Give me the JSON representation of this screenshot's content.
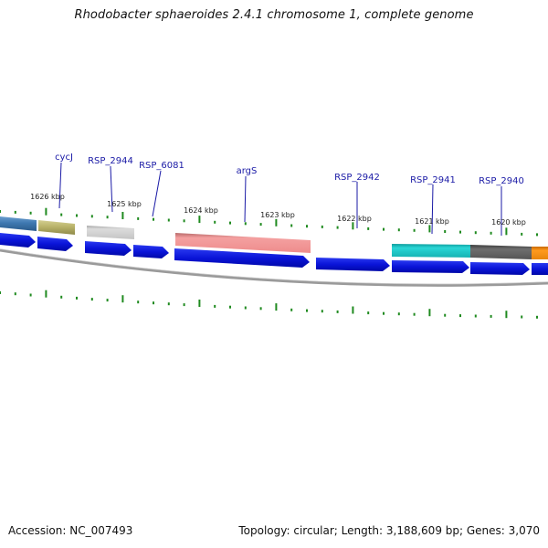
{
  "title": "Rhodobacter sphaeroides 2.4.1 chromosome 1, complete genome",
  "footer": {
    "accession": "Accession: NC_007493",
    "stats": "Topology: circular; Length: 3,188,609 bp; Genes: 3,070"
  },
  "colors": {
    "background": "#ffffff",
    "backbone": "#8a8a8a",
    "cds_arrow": "#0a14d8",
    "tick": "#1f8a1f",
    "leader_line": "#1a1aa6"
  },
  "kbp_labels": [
    "1626 kbp",
    "1625 kbp",
    "1624 kbp",
    "1623 kbp",
    "1622 kbp",
    "1621 kbp",
    "1620 kbp"
  ],
  "gene_labels": [
    "cycJ",
    "RSP_2944",
    "RSP_6081",
    "argS",
    "RSP_2942",
    "RSP_2941",
    "RSP_2940"
  ]
}
